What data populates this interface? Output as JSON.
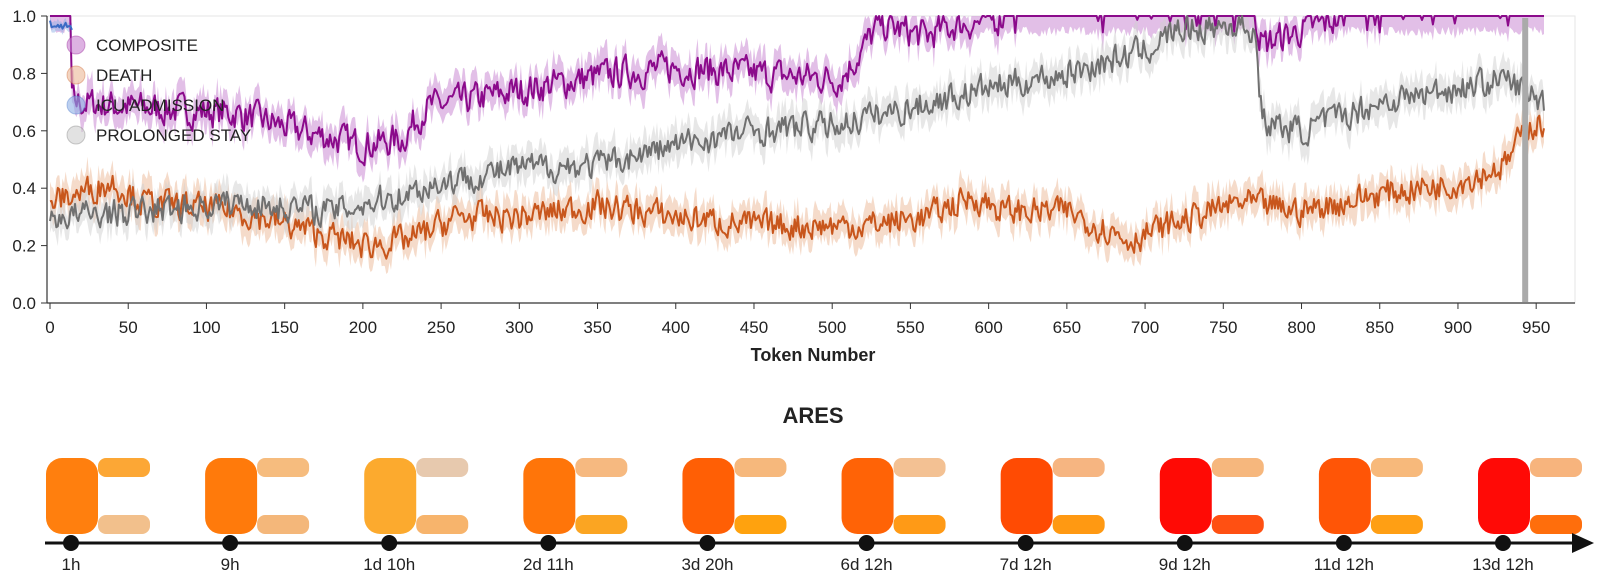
{
  "chart_data": {
    "type": "line",
    "xlabel": "Token Number",
    "ylabel": "",
    "xlim": [
      0,
      955
    ],
    "ylim": [
      0,
      1
    ],
    "x_ticks": [
      "0",
      "50",
      "100",
      "150",
      "200",
      "250",
      "300",
      "350",
      "400",
      "450",
      "500",
      "550",
      "600",
      "650",
      "700",
      "750",
      "800",
      "850",
      "900",
      "950"
    ],
    "y_ticks": [
      "0.0",
      "0.2",
      "0.4",
      "0.6",
      "0.8",
      "1.0"
    ],
    "legend_position": "top-left",
    "current_token": 943,
    "series": [
      {
        "name": "COMPOSITE",
        "color": "#8b0a8b",
        "band_color": "#c67fcf",
        "noise": 0.05,
        "band": 0.06,
        "anchors": [
          [
            0,
            1
          ],
          [
            13,
            1
          ],
          [
            14,
            0.7
          ],
          [
            60,
            0.68
          ],
          [
            120,
            0.66
          ],
          [
            160,
            0.6
          ],
          [
            200,
            0.55
          ],
          [
            225,
            0.57
          ],
          [
            240,
            0.68
          ],
          [
            300,
            0.74
          ],
          [
            360,
            0.8
          ],
          [
            400,
            0.82
          ],
          [
            450,
            0.8
          ],
          [
            505,
            0.78
          ],
          [
            515,
            0.85
          ],
          [
            530,
            0.97
          ],
          [
            560,
            0.93
          ],
          [
            580,
            0.97
          ],
          [
            600,
            0.98
          ],
          [
            610,
            1
          ],
          [
            770,
            1
          ],
          [
            775,
            0.9
          ],
          [
            800,
            0.95
          ],
          [
            830,
            1
          ],
          [
            955,
            1
          ]
        ]
      },
      {
        "name": "DEATH",
        "color": "#c8561c",
        "band_color": "#ebb896",
        "noise": 0.045,
        "band": 0.06,
        "anchors": [
          [
            0,
            0.35
          ],
          [
            40,
            0.42
          ],
          [
            60,
            0.35
          ],
          [
            120,
            0.32
          ],
          [
            160,
            0.26
          ],
          [
            200,
            0.2
          ],
          [
            230,
            0.22
          ],
          [
            260,
            0.3
          ],
          [
            300,
            0.3
          ],
          [
            350,
            0.34
          ],
          [
            400,
            0.3
          ],
          [
            450,
            0.27
          ],
          [
            520,
            0.27
          ],
          [
            560,
            0.3
          ],
          [
            590,
            0.37
          ],
          [
            610,
            0.32
          ],
          [
            650,
            0.32
          ],
          [
            690,
            0.22
          ],
          [
            720,
            0.28
          ],
          [
            760,
            0.35
          ],
          [
            800,
            0.32
          ],
          [
            850,
            0.38
          ],
          [
            900,
            0.42
          ],
          [
            930,
            0.48
          ],
          [
            945,
            0.62
          ],
          [
            955,
            0.62
          ]
        ]
      },
      {
        "name": "ICU ADMISSION",
        "color": "#3a6bc4",
        "band_color": "#8fb1e6",
        "noise": 0.015,
        "band": 0.02,
        "anchors": [
          [
            0,
            0.97
          ],
          [
            13,
            0.96
          ],
          [
            14,
            0.96
          ]
        ]
      },
      {
        "name": "PROLONGED STAY",
        "color": "#707070",
        "band_color": "#cfcfcf",
        "noise": 0.045,
        "band": 0.06,
        "anchors": [
          [
            0,
            0.3
          ],
          [
            60,
            0.32
          ],
          [
            120,
            0.35
          ],
          [
            180,
            0.32
          ],
          [
            220,
            0.37
          ],
          [
            250,
            0.42
          ],
          [
            300,
            0.47
          ],
          [
            350,
            0.48
          ],
          [
            400,
            0.55
          ],
          [
            450,
            0.6
          ],
          [
            500,
            0.62
          ],
          [
            550,
            0.68
          ],
          [
            600,
            0.75
          ],
          [
            650,
            0.8
          ],
          [
            700,
            0.88
          ],
          [
            720,
            0.95
          ],
          [
            760,
            0.97
          ],
          [
            770,
            0.95
          ],
          [
            775,
            0.63
          ],
          [
            800,
            0.6
          ],
          [
            850,
            0.7
          ],
          [
            900,
            0.75
          ],
          [
            930,
            0.78
          ],
          [
            955,
            0.7
          ]
        ]
      }
    ]
  },
  "ares": {
    "title": "ARES",
    "steps": [
      {
        "time": "1h",
        "colors": [
          "#ff7f0e",
          "#fca735",
          "#f2c08c"
        ]
      },
      {
        "time": "9h",
        "colors": [
          "#ff7a0b",
          "#f6bc7e",
          "#f4b77a"
        ]
      },
      {
        "time": "1d 10h",
        "colors": [
          "#fcaa2e",
          "#e7c9ae",
          "#f7b46c"
        ]
      },
      {
        "time": "2d 11h",
        "colors": [
          "#ff7509",
          "#f6b980",
          "#fba522"
        ]
      },
      {
        "time": "3d 20h",
        "colors": [
          "#ff5f05",
          "#f6b87c",
          "#ffa20e"
        ]
      },
      {
        "time": "6d 12h",
        "colors": [
          "#ff6306",
          "#f3c193",
          "#ff9a16"
        ]
      },
      {
        "time": "7d 12h",
        "colors": [
          "#ff4b03",
          "#f6b581",
          "#ff9912"
        ]
      },
      {
        "time": "9d 12h",
        "colors": [
          "#ff0a05",
          "#f6b77d",
          "#ff5012"
        ]
      },
      {
        "time": "11d 12h",
        "colors": [
          "#ff5506",
          "#f7b97b",
          "#ff9f14"
        ]
      },
      {
        "time": "13d 12h",
        "colors": [
          "#ff0a06",
          "#f7b47d",
          "#ff6e0c"
        ]
      }
    ]
  }
}
